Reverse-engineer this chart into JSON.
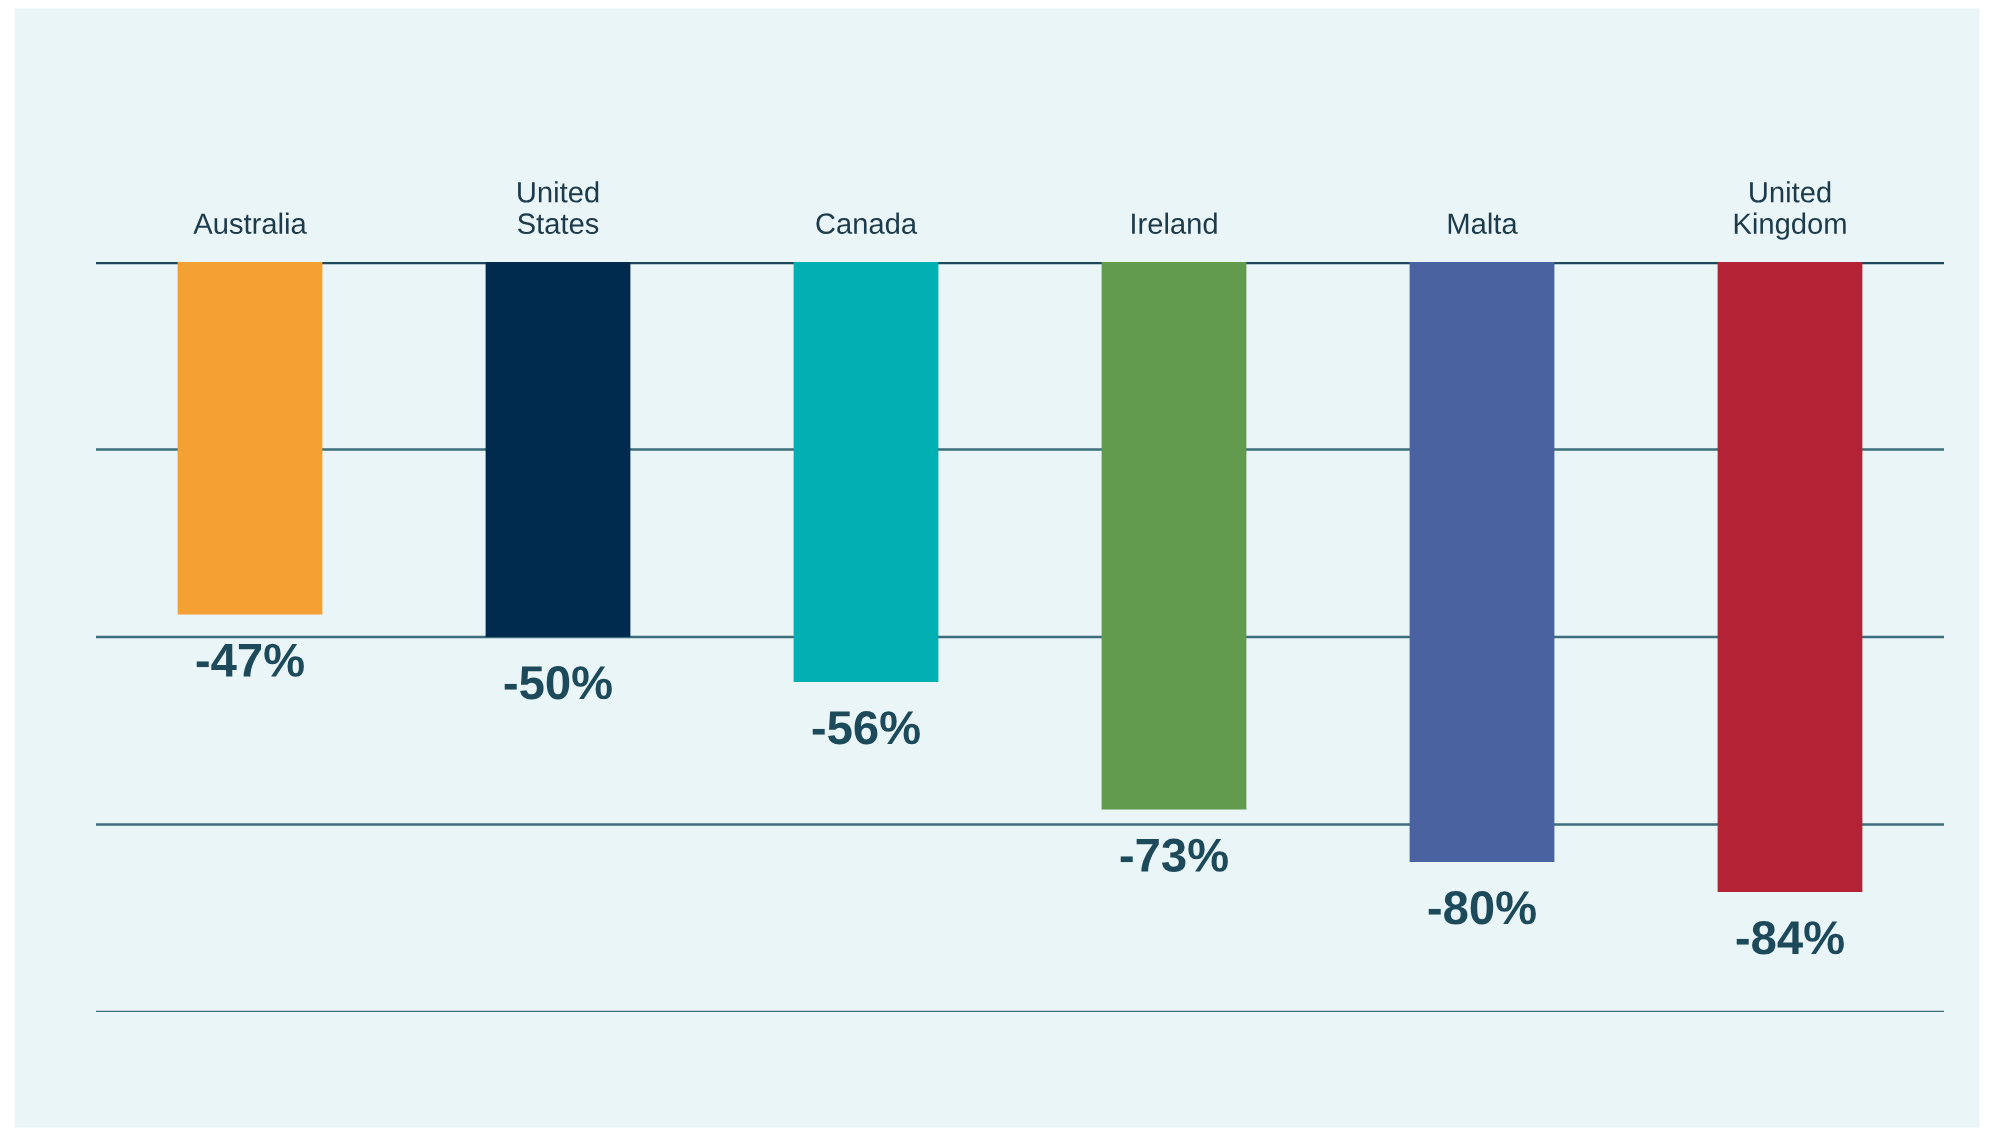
{
  "chart_data": {
    "type": "bar",
    "categories": [
      "Australia",
      "United\nStates",
      "Canada",
      "Ireland",
      "Malta",
      "United\nKingdom"
    ],
    "values": [
      -47,
      -50,
      -56,
      -73,
      -80,
      -84
    ],
    "colors": [
      "#f4a032",
      "#002b4f",
      "#00b0b3",
      "#629a4e",
      "#4a62a0",
      "#b32335"
    ],
    "value_labels": [
      "-47%",
      "-50%",
      "-56%",
      "-73%",
      "-80%",
      "-84%"
    ],
    "ylim": [
      -100,
      0
    ],
    "yticks": [
      {
        "value": -100,
        "label": null
      },
      {
        "value": -75,
        "label": null
      },
      {
        "value": -50,
        "label": null
      },
      {
        "value": -25,
        "label": null
      },
      {
        "value": 0,
        "label": null
      }
    ],
    "grid": "y",
    "tick_labels": "x"
  }
}
